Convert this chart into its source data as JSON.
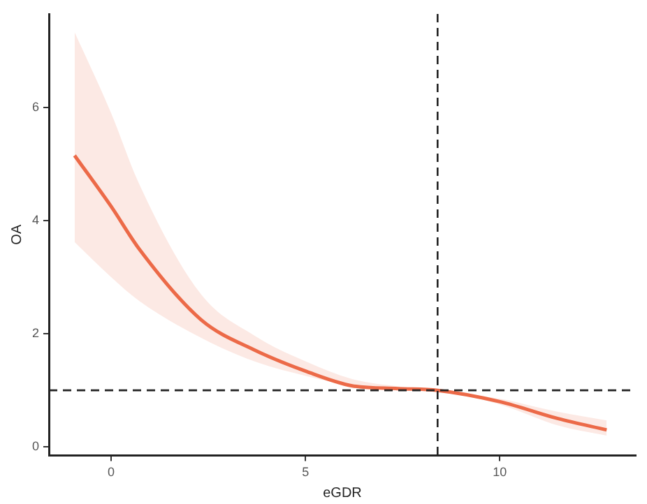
{
  "chart_data": {
    "type": "line",
    "xlabel": "eGDR",
    "ylabel": "OA",
    "xlim": [
      -1.6,
      13.5
    ],
    "xticks": [
      0,
      5,
      10
    ],
    "ylim": [
      -0.15,
      7.65
    ],
    "yticks": [
      0,
      2,
      4,
      6
    ],
    "series": [
      {
        "color": "#ec6a48",
        "x": [
          -0.94,
          0,
          0.72,
          2.31,
          3.73,
          5.04,
          6.2,
          7.38,
          8.4,
          10,
          11.5,
          12.75
        ],
        "values": [
          5.15,
          4.25,
          3.5,
          2.25,
          1.7,
          1.33,
          1.08,
          1.03,
          1.0,
          0.8,
          0.5,
          0.3
        ],
        "upper": [
          7.33,
          5.9,
          4.65,
          2.7,
          1.95,
          1.5,
          1.2,
          1.07,
          1.0,
          0.85,
          0.62,
          0.47
        ],
        "lower": [
          3.62,
          3.0,
          2.58,
          1.93,
          1.5,
          1.25,
          1.08,
          1.0,
          1.0,
          0.75,
          0.38,
          0.2
        ]
      }
    ],
    "ref_lines": [
      {
        "axis": "x",
        "value": 8.4,
        "line_style": "dashed",
        "color": "#222222"
      },
      {
        "axis": "y",
        "value": 1,
        "line_style": "dashed",
        "color": "#222222"
      }
    ],
    "grid": false,
    "legend": false,
    "marker": "none",
    "line_style": "solid"
  }
}
